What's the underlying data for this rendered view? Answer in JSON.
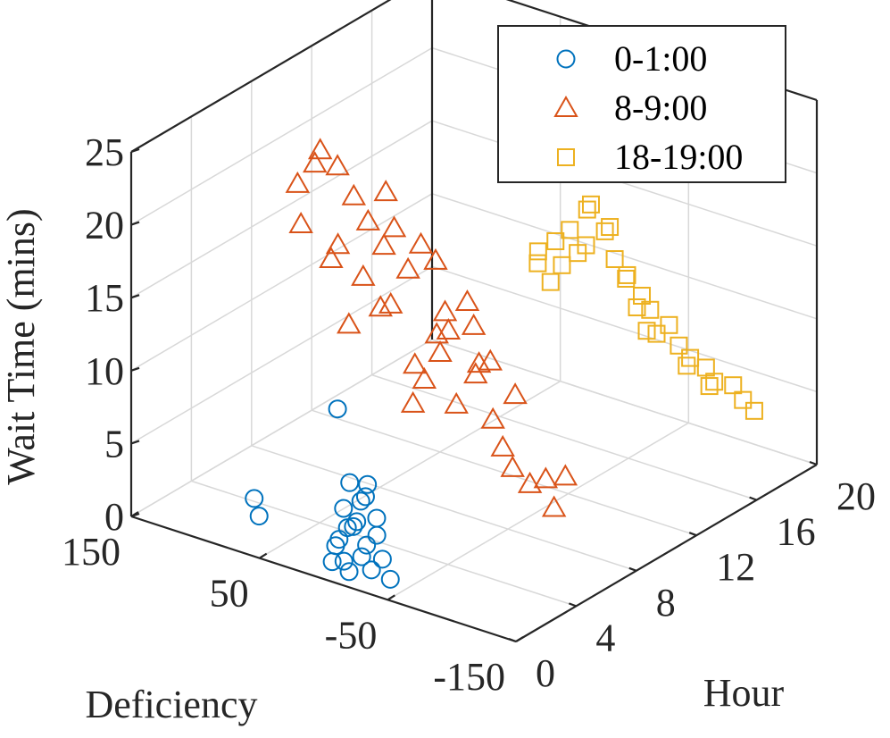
{
  "chart_data": {
    "type": "scatter3d",
    "title": "",
    "xlabel": "Deficiency",
    "ylabel": "Hour",
    "zlabel": "Wait Time (mins)",
    "xlim": [
      -150,
      150
    ],
    "ylim": [
      0,
      20
    ],
    "zlim": [
      0,
      25
    ],
    "x_ticks": [
      150,
      50,
      -50,
      -150
    ],
    "y_ticks": [
      0,
      4,
      8,
      12,
      16,
      20
    ],
    "z_ticks": [
      0,
      5,
      10,
      15,
      20,
      25
    ],
    "grid": true,
    "legend_position": "top-right",
    "series": [
      {
        "name": "0-1:00",
        "marker": "circle",
        "color": "#0072BD",
        "hour_range": [
          0,
          1
        ],
        "points": [
          [
            -10,
            0.5,
            1.2
          ],
          [
            -25,
            0.4,
            2.0
          ],
          [
            -5,
            0.6,
            2.5
          ],
          [
            -30,
            0.3,
            3.0
          ],
          [
            -15,
            0.7,
            3.6
          ],
          [
            -20,
            0.5,
            4.2
          ],
          [
            -35,
            0.2,
            1.5
          ],
          [
            0,
            0.8,
            1.8
          ],
          [
            -40,
            0.5,
            2.2
          ],
          [
            -12,
            0.3,
            5.0
          ],
          [
            -22,
            0.6,
            5.6
          ],
          [
            -28,
            0.4,
            6.2
          ],
          [
            -18,
            0.2,
            7.0
          ],
          [
            -8,
            0.9,
            3.2
          ],
          [
            -45,
            0.6,
            0.9
          ],
          [
            -32,
            0.8,
            4.6
          ],
          [
            -2,
            0.4,
            1.0
          ],
          [
            -26,
            0.7,
            6.8
          ],
          [
            -14,
            0.5,
            0.6
          ],
          [
            -38,
            0.3,
            3.9
          ],
          [
            60,
            0.5,
            3.5
          ],
          [
            55,
            0.4,
            2.5
          ],
          [
            -5,
            0.5,
            11.5
          ]
        ]
      },
      {
        "name": "8-9:00",
        "marker": "triangle",
        "color": "#D95319",
        "hour_range": [
          8,
          9
        ],
        "points": [
          [
            30,
            8.5,
            6.0
          ],
          [
            20,
            8.4,
            8.0
          ],
          [
            10,
            8.6,
            10.0
          ],
          [
            0,
            8.3,
            12.0
          ],
          [
            -10,
            8.7,
            14.0
          ],
          [
            25,
            8.2,
            9.0
          ],
          [
            15,
            8.8,
            11.0
          ],
          [
            5,
            8.5,
            13.0
          ],
          [
            -5,
            8.4,
            7.0
          ],
          [
            35,
            8.6,
            15.0
          ],
          [
            45,
            8.3,
            12.5
          ],
          [
            55,
            8.7,
            16.0
          ],
          [
            65,
            8.5,
            17.5
          ],
          [
            75,
            8.4,
            19.0
          ],
          [
            90,
            8.6,
            20.5
          ],
          [
            100,
            8.3,
            21.5
          ],
          [
            110,
            8.8,
            20.0
          ],
          [
            120,
            8.5,
            18.5
          ],
          [
            85,
            8.2,
            15.5
          ],
          [
            70,
            8.6,
            13.5
          ],
          [
            -20,
            8.4,
            9.5
          ],
          [
            -30,
            8.7,
            6.5
          ],
          [
            -40,
            8.5,
            5.0
          ],
          [
            -50,
            8.3,
            4.0
          ],
          [
            -60,
            8.6,
            3.0
          ],
          [
            -70,
            8.8,
            3.5
          ],
          [
            -80,
            8.5,
            2.0
          ],
          [
            -90,
            8.4,
            4.5
          ],
          [
            -45,
            8.9,
            8.5
          ],
          [
            -35,
            8.1,
            11.0
          ],
          [
            60,
            8.9,
            11.5
          ],
          [
            40,
            8.1,
            18.0
          ],
          [
            50,
            8.4,
            20.0
          ],
          [
            25,
            8.6,
            17.0
          ],
          [
            10,
            8.3,
            16.5
          ],
          [
            -15,
            8.7,
            12.5
          ],
          [
            -25,
            8.2,
            10.5
          ],
          [
            80,
            8.5,
            10.0
          ],
          [
            95,
            8.6,
            14.0
          ],
          [
            115,
            8.3,
            16.0
          ]
        ]
      },
      {
        "name": "18-19:00",
        "marker": "square",
        "color": "#EDB120",
        "hour_range": [
          18,
          19
        ],
        "points": [
          [
            40,
            18.5,
            8.0
          ],
          [
            30,
            18.4,
            9.5
          ],
          [
            20,
            18.6,
            10.5
          ],
          [
            10,
            18.3,
            11.5
          ],
          [
            0,
            18.7,
            12.5
          ],
          [
            -10,
            18.5,
            11.0
          ],
          [
            -20,
            18.4,
            10.0
          ],
          [
            -30,
            18.6,
            9.0
          ],
          [
            -40,
            18.3,
            8.5
          ],
          [
            -50,
            18.7,
            7.5
          ],
          [
            -60,
            18.5,
            6.5
          ],
          [
            -70,
            18.4,
            6.0
          ],
          [
            -80,
            18.6,
            5.5
          ],
          [
            -90,
            18.3,
            5.0
          ],
          [
            -100,
            18.7,
            4.8
          ],
          [
            -110,
            18.5,
            4.2
          ],
          [
            -120,
            18.4,
            3.8
          ],
          [
            15,
            18.8,
            13.5
          ],
          [
            5,
            18.2,
            14.5
          ],
          [
            25,
            18.5,
            12.0
          ],
          [
            -5,
            18.6,
            13.0
          ],
          [
            35,
            18.4,
            11.0
          ],
          [
            -25,
            18.7,
            8.0
          ],
          [
            -45,
            18.3,
            7.0
          ],
          [
            50,
            18.5,
            9.0
          ],
          [
            -65,
            18.6,
            5.2
          ],
          [
            -85,
            18.4,
            4.5
          ],
          [
            -15,
            18.9,
            9.8
          ],
          [
            45,
            18.1,
            10.2
          ],
          [
            -35,
            18.5,
            6.8
          ]
        ]
      }
    ]
  }
}
